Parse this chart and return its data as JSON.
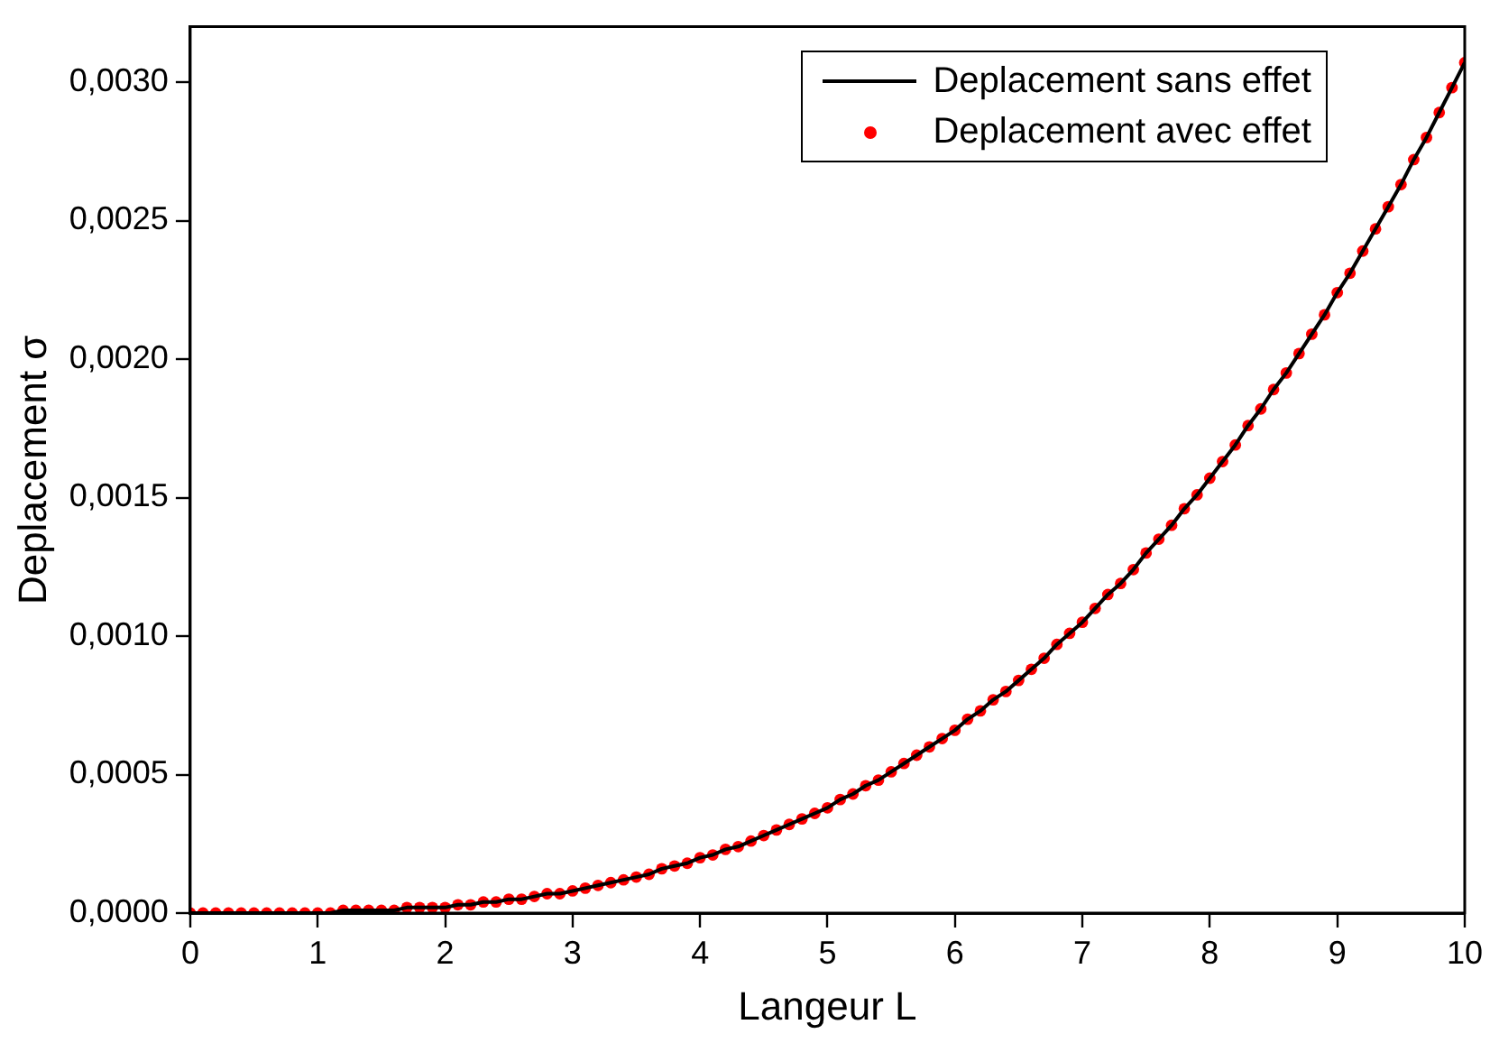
{
  "chart_data": {
    "type": "line",
    "xlabel": "Langeur L",
    "ylabel": "Deplacement σ",
    "x": [
      0,
      0.1,
      0.2,
      0.3,
      0.4,
      0.5,
      0.6,
      0.7,
      0.8,
      0.9,
      1,
      1.1,
      1.2,
      1.3,
      1.4,
      1.5,
      1.6,
      1.7,
      1.8,
      1.9,
      2,
      2.1,
      2.2,
      2.3,
      2.4,
      2.5,
      2.6,
      2.7,
      2.8,
      2.9,
      3,
      3.1,
      3.2,
      3.3,
      3.4,
      3.5,
      3.6,
      3.7,
      3.8,
      3.9,
      4,
      4.1,
      4.2,
      4.3,
      4.4,
      4.5,
      4.6,
      4.7,
      4.8,
      4.9,
      5,
      5.1,
      5.2,
      5.3,
      5.4,
      5.5,
      5.6,
      5.7,
      5.8,
      5.9,
      6,
      6.1,
      6.2,
      6.3,
      6.4,
      6.5,
      6.6,
      6.7,
      6.8,
      6.9,
      7,
      7.1,
      7.2,
      7.3,
      7.4,
      7.5,
      7.6,
      7.7,
      7.8,
      7.9,
      8,
      8.1,
      8.2,
      8.3,
      8.4,
      8.5,
      8.6,
      8.7,
      8.8,
      8.9,
      9,
      9.1,
      9.2,
      9.3,
      9.4,
      9.5,
      9.6,
      9.7,
      9.8,
      9.9,
      10
    ],
    "series": [
      {
        "name": "Deplacement sans effet",
        "type": "line",
        "color": "#000000",
        "marker": "none",
        "line_style": "solid",
        "values": [
          0,
          0,
          0,
          0,
          0,
          0,
          0,
          0,
          0,
          0,
          0,
          0,
          1e-05,
          1e-05,
          1e-05,
          1e-05,
          1e-05,
          2e-05,
          2e-05,
          2e-05,
          2e-05,
          3e-05,
          3e-05,
          4e-05,
          4e-05,
          5e-05,
          5e-05,
          6e-05,
          7e-05,
          7e-05,
          8e-05,
          9e-05,
          0.0001,
          0.00011,
          0.00012,
          0.00013,
          0.00014,
          0.00016,
          0.00017,
          0.00018,
          0.0002,
          0.00021,
          0.00023,
          0.00024,
          0.00026,
          0.00028,
          0.0003,
          0.00032,
          0.00034,
          0.00036,
          0.00038,
          0.00041,
          0.00043,
          0.00046,
          0.00048,
          0.00051,
          0.00054,
          0.00057,
          0.0006,
          0.00063,
          0.00066,
          0.0007,
          0.00073,
          0.00077,
          0.0008,
          0.00084,
          0.00088,
          0.00092,
          0.00097,
          0.00101,
          0.00105,
          0.0011,
          0.00115,
          0.00119,
          0.00124,
          0.0013,
          0.00135,
          0.0014,
          0.00146,
          0.00151,
          0.00157,
          0.00163,
          0.00169,
          0.00176,
          0.00182,
          0.00189,
          0.00195,
          0.00202,
          0.00209,
          0.00216,
          0.00224,
          0.00231,
          0.00239,
          0.00247,
          0.00255,
          0.00263,
          0.00272,
          0.0028,
          0.00289,
          0.00298,
          0.00307
        ]
      },
      {
        "name": "Deplacement avec effet",
        "type": "scatter",
        "color": "#ff0000",
        "marker": "circle",
        "values": [
          0,
          0,
          0,
          0,
          0,
          0,
          0,
          0,
          0,
          0,
          0,
          0,
          1e-05,
          1e-05,
          1e-05,
          1e-05,
          1e-05,
          2e-05,
          2e-05,
          2e-05,
          2e-05,
          3e-05,
          3e-05,
          4e-05,
          4e-05,
          5e-05,
          5e-05,
          6e-05,
          7e-05,
          7e-05,
          8e-05,
          9e-05,
          0.0001,
          0.00011,
          0.00012,
          0.00013,
          0.00014,
          0.00016,
          0.00017,
          0.00018,
          0.0002,
          0.00021,
          0.00023,
          0.00024,
          0.00026,
          0.00028,
          0.0003,
          0.00032,
          0.00034,
          0.00036,
          0.00038,
          0.00041,
          0.00043,
          0.00046,
          0.00048,
          0.00051,
          0.00054,
          0.00057,
          0.0006,
          0.00063,
          0.00066,
          0.0007,
          0.00073,
          0.00077,
          0.0008,
          0.00084,
          0.00088,
          0.00092,
          0.00097,
          0.00101,
          0.00105,
          0.0011,
          0.00115,
          0.00119,
          0.00124,
          0.0013,
          0.00135,
          0.0014,
          0.00146,
          0.00151,
          0.00157,
          0.00163,
          0.00169,
          0.00176,
          0.00182,
          0.00189,
          0.00195,
          0.00202,
          0.00209,
          0.00216,
          0.00224,
          0.00231,
          0.00239,
          0.00247,
          0.00255,
          0.00263,
          0.00272,
          0.0028,
          0.00289,
          0.00298,
          0.00307
        ]
      }
    ],
    "xlim": [
      0,
      10
    ],
    "xticks": [
      0,
      1,
      2,
      3,
      4,
      5,
      6,
      7,
      8,
      9,
      10
    ],
    "ylim": [
      0,
      0.0032
    ],
    "yticks": [
      {
        "value": 0,
        "label": "0,0000"
      },
      {
        "value": 0.0005,
        "label": "0,0005"
      },
      {
        "value": 0.001,
        "label": "0,0010"
      },
      {
        "value": 0.0015,
        "label": "0,0015"
      },
      {
        "value": 0.002,
        "label": "0,0020"
      },
      {
        "value": 0.0025,
        "label": "0,0025"
      },
      {
        "value": 0.003,
        "label": "0,0030"
      }
    ],
    "grid": false,
    "legend": "top right"
  }
}
